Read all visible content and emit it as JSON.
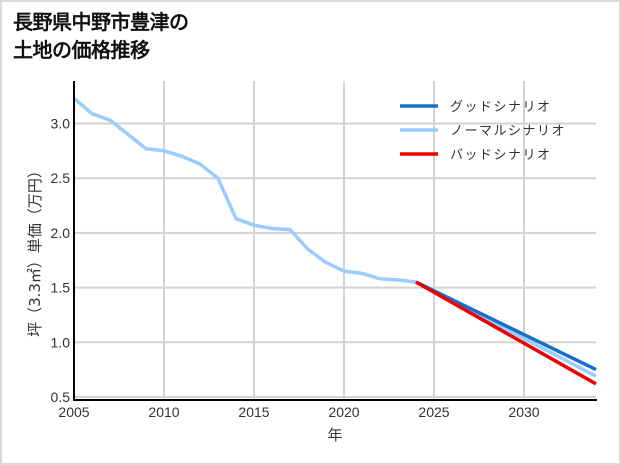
{
  "title_line1": "長野県中野市豊津の",
  "title_line2": "土地の価格推移",
  "chart_data": {
    "type": "line",
    "title": "長野県中野市豊津の土地の価格推移",
    "xlabel": "年",
    "ylabel": "坪（3.3㎡）単価（万円）",
    "xlim": [
      2005,
      2034
    ],
    "ylim": [
      0.5,
      3.3
    ],
    "x_ticks": [
      2005,
      2010,
      2015,
      2020,
      2025,
      2030
    ],
    "y_ticks": [
      0.5,
      1.0,
      1.5,
      2.0,
      2.5,
      3.0
    ],
    "x_tick_labels": [
      "2005",
      "2010",
      "2015",
      "2020",
      "2025",
      "2030"
    ],
    "y_tick_labels": [
      "0.5",
      "1.0",
      "1.5",
      "2.0",
      "2.5",
      "3.0"
    ],
    "grid": true,
    "legend_position": "upper right",
    "series": [
      {
        "name": "グッドシナリオ",
        "color": "#1470c8",
        "x": [
          2024,
          2034
        ],
        "values": [
          1.55,
          0.75
        ]
      },
      {
        "name": "ノーマルシナリオ",
        "color": "#99ccff",
        "x": [
          2005,
          2006,
          2007,
          2008,
          2009,
          2010,
          2011,
          2012,
          2013,
          2014,
          2015,
          2016,
          2017,
          2018,
          2019,
          2020,
          2021,
          2022,
          2023,
          2024,
          2034
        ],
        "values": [
          3.23,
          3.09,
          3.03,
          2.9,
          2.77,
          2.75,
          2.7,
          2.63,
          2.5,
          2.13,
          2.07,
          2.04,
          2.03,
          1.85,
          1.73,
          1.65,
          1.63,
          1.58,
          1.57,
          1.55,
          0.69
        ]
      },
      {
        "name": "バッドシナリオ",
        "color": "#ee0000",
        "x": [
          2024,
          2034
        ],
        "values": [
          1.55,
          0.62
        ]
      }
    ]
  }
}
